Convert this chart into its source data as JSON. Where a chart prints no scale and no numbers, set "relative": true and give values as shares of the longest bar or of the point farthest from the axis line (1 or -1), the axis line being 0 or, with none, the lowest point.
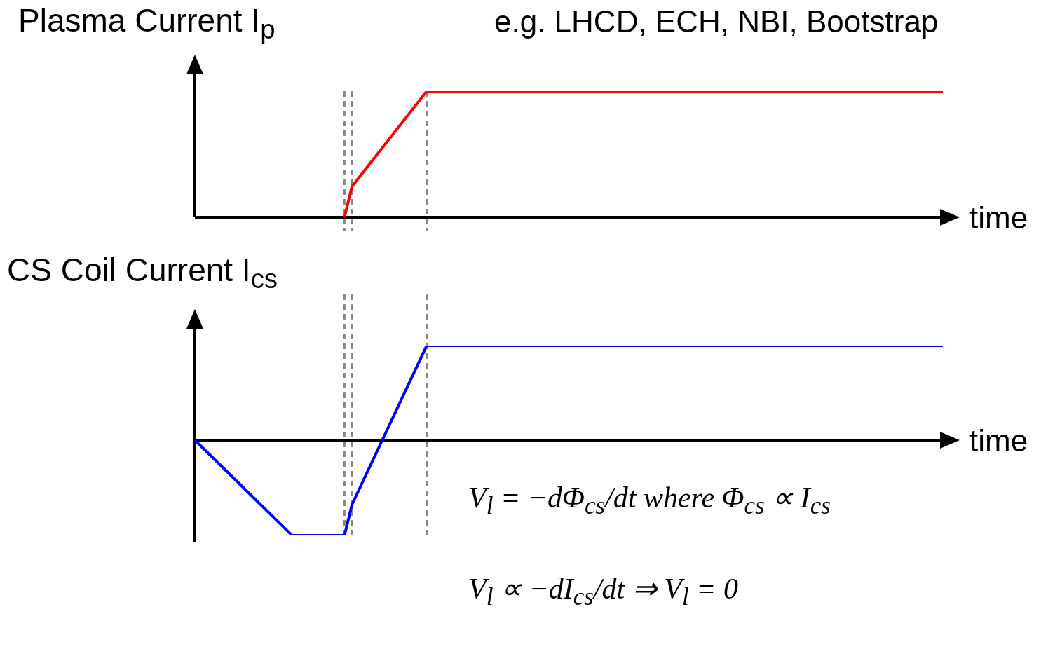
{
  "chart_data": [
    {
      "type": "line",
      "title": "Plasma Current I$_{p}$",
      "xlabel": "time",
      "relative": true,
      "grid": "x",
      "tick_labels": false,
      "legend": false,
      "marker": "none",
      "line_style": "solid",
      "categories": [
        null,
        null,
        null,
        null,
        null,
        null,
        null,
        null,
        null,
        null,
        null,
        null,
        null,
        null,
        null,
        null,
        null,
        null,
        null,
        null,
        null,
        null,
        null,
        null,
        null,
        null,
        null,
        null,
        null,
        null,
        null,
        null,
        null,
        null,
        null,
        null,
        null,
        null,
        null,
        null,
        null,
        null,
        null,
        null,
        null,
        null,
        null,
        null,
        null,
        null,
        null,
        null,
        null,
        null,
        null,
        null,
        null,
        null,
        null,
        null,
        null,
        null,
        null,
        null,
        null,
        null,
        null,
        null,
        null,
        null,
        null,
        null,
        null,
        null,
        null,
        null,
        null,
        null,
        null,
        null,
        null,
        null,
        null,
        null,
        null,
        null,
        null,
        null,
        null,
        null,
        null,
        null,
        null,
        null,
        null,
        null,
        null,
        null,
        null,
        null,
        null
      ],
      "series": [
        {
          "color": "#ff0000",
          "values": [
            null,
            null,
            null,
            null,
            null,
            null,
            null,
            null,
            null,
            null,
            null,
            null,
            null,
            null,
            null,
            null,
            null,
            null,
            null,
            null,
            0,
            0.244,
            null,
            null,
            null,
            null,
            null,
            null,
            null,
            null,
            null,
            1,
            null,
            null,
            null,
            null,
            null,
            null,
            null,
            null,
            null,
            null,
            null,
            null,
            null,
            null,
            null,
            null,
            null,
            null,
            null,
            null,
            null,
            null,
            null,
            null,
            null,
            null,
            null,
            null,
            null,
            null,
            null,
            null,
            null,
            null,
            null,
            null,
            null,
            null,
            null,
            null,
            null,
            null,
            null,
            null,
            null,
            null,
            null,
            null,
            null,
            null,
            null,
            null,
            null,
            null,
            null,
            null,
            null,
            null,
            null,
            null,
            null,
            null,
            null,
            null,
            null,
            null,
            null,
            null,
            1
          ]
        }
      ],
      "annotations": [
        "e.g. LHCD, ECH, NBI, Bootstrap"
      ]
    },
    {
      "type": "line",
      "title": "CS Coil Current I$_{cs}$",
      "xlabel": "time",
      "relative": true,
      "grid": "x",
      "tick_labels": false,
      "legend": false,
      "marker": "none",
      "line_style": "solid",
      "categories": [
        null,
        null,
        null,
        null,
        null,
        null,
        null,
        null,
        null,
        null,
        null,
        null,
        null,
        null,
        null,
        null,
        null,
        null,
        null,
        null,
        null,
        null,
        null,
        null,
        null,
        null,
        null,
        null,
        null,
        null,
        null,
        null,
        null,
        null,
        null,
        null,
        null,
        null,
        null,
        null,
        null,
        null,
        null,
        null,
        null,
        null,
        null,
        null,
        null,
        null,
        null,
        null,
        null,
        null,
        null,
        null,
        null,
        null,
        null,
        null,
        null,
        null,
        null,
        null,
        null,
        null,
        null,
        null,
        null,
        null,
        null,
        null,
        null,
        null,
        null,
        null,
        null,
        null,
        null,
        null,
        null,
        null,
        null,
        null,
        null,
        null,
        null,
        null,
        null,
        null,
        null,
        null,
        null,
        null,
        null,
        null,
        null,
        null,
        null,
        null,
        null
      ],
      "series": [
        {
          "color": "#0000ff",
          "values": [
            0,
            null,
            null,
            null,
            null,
            null,
            null,
            null,
            null,
            null,
            null,
            null,
            null,
            -1,
            null,
            null,
            null,
            null,
            null,
            null,
            -1,
            -0.676,
            null,
            null,
            null,
            null,
            null,
            null,
            null,
            null,
            null,
            0.993,
            null,
            null,
            null,
            null,
            null,
            null,
            null,
            null,
            null,
            null,
            null,
            null,
            null,
            null,
            null,
            null,
            null,
            null,
            null,
            null,
            null,
            null,
            null,
            null,
            null,
            null,
            null,
            null,
            null,
            null,
            null,
            null,
            null,
            null,
            null,
            null,
            null,
            null,
            null,
            null,
            null,
            null,
            null,
            null,
            null,
            null,
            null,
            null,
            null,
            null,
            null,
            null,
            null,
            null,
            null,
            null,
            null,
            null,
            null,
            null,
            null,
            null,
            null,
            null,
            null,
            null,
            null,
            null,
            0.993
          ]
        }
      ],
      "annotations": [
        "V$_{l}$ = −dΦ$_{cs}$/dt  where  Φ$_{cs}$ ∝ I$_{cs}$",
        "V$_{l}$ ∝ −dI$_{cs}$/dt ⇒ V$_{l}$ = 0"
      ]
    }
  ]
}
